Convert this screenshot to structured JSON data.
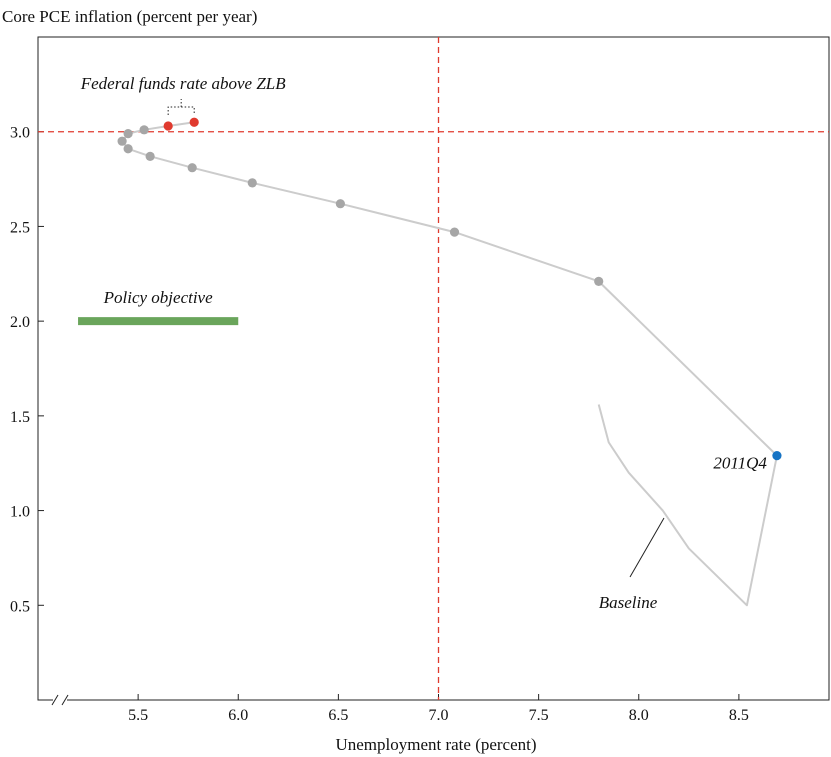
{
  "chart_data": {
    "type": "line",
    "title": "",
    "ylabel": "Core PCE inflation (percent per year)",
    "xlabel": "Unemployment rate (percent)",
    "xlim": [
      5.0,
      8.95
    ],
    "ylim": [
      0.0,
      3.5
    ],
    "x_ticks": [
      5.5,
      6.0,
      6.5,
      7.0,
      7.5,
      8.0,
      8.5
    ],
    "x_tick_labels": [
      "5.5",
      "6.0",
      "6.5",
      "7.0",
      "7.5",
      "8.0",
      "8.5"
    ],
    "y_ticks": [
      0.5,
      1.0,
      1.5,
      2.0,
      2.5,
      3.0
    ],
    "y_tick_labels": [
      "0.5",
      "1.0",
      "1.5",
      "2.0",
      "2.5",
      "3.0"
    ],
    "axis_break": true,
    "grid": false,
    "series": [
      {
        "role": "projection-path",
        "color": "#cccccc",
        "marker_color": "#a6a6a6",
        "points": [
          {
            "x": 8.69,
            "y": 1.29,
            "marker": "blue"
          },
          {
            "x": 7.8,
            "y": 2.21,
            "marker": "gray"
          },
          {
            "x": 7.08,
            "y": 2.47,
            "marker": "gray"
          },
          {
            "x": 6.51,
            "y": 2.62,
            "marker": "gray"
          },
          {
            "x": 6.07,
            "y": 2.73,
            "marker": "gray"
          },
          {
            "x": 5.77,
            "y": 2.81,
            "marker": "gray"
          },
          {
            "x": 5.56,
            "y": 2.87,
            "marker": "gray"
          },
          {
            "x": 5.45,
            "y": 2.91,
            "marker": "gray"
          },
          {
            "x": 5.42,
            "y": 2.95,
            "marker": "gray"
          },
          {
            "x": 5.45,
            "y": 2.99,
            "marker": "gray"
          },
          {
            "x": 5.53,
            "y": 3.01,
            "marker": "gray"
          },
          {
            "x": 5.65,
            "y": 3.03,
            "marker": "red"
          },
          {
            "x": 5.78,
            "y": 3.05,
            "marker": "red"
          }
        ]
      },
      {
        "name": "Baseline",
        "color": "#cccccc",
        "points": [
          {
            "x": 8.69,
            "y": 1.29
          },
          {
            "x": 8.54,
            "y": 0.5
          },
          {
            "x": 8.25,
            "y": 0.8
          },
          {
            "x": 8.12,
            "y": 1.0
          },
          {
            "x": 7.95,
            "y": 1.2
          },
          {
            "x": 7.85,
            "y": 1.36
          },
          {
            "x": 7.8,
            "y": 1.56
          }
        ]
      }
    ],
    "policy_objective": {
      "label": "Policy objective",
      "x_start": 5.2,
      "x_end": 6.0,
      "y": 2.0,
      "color": "#6aa55b"
    },
    "threshold_lines": [
      {
        "axis": "x",
        "value": 7.0,
        "color": "#e03a2e",
        "style": "dashed"
      },
      {
        "axis": "y",
        "value": 3.0,
        "color": "#e03a2e",
        "style": "dashed"
      }
    ],
    "annotations": [
      {
        "text": "Federal funds rate above ZLB"
      },
      {
        "text": "2011Q4"
      },
      {
        "text": "Baseline"
      }
    ],
    "colors": {
      "blue_marker": "#1673c4",
      "red_marker": "#e03a2e",
      "gray_marker": "#a6a6a6"
    }
  }
}
